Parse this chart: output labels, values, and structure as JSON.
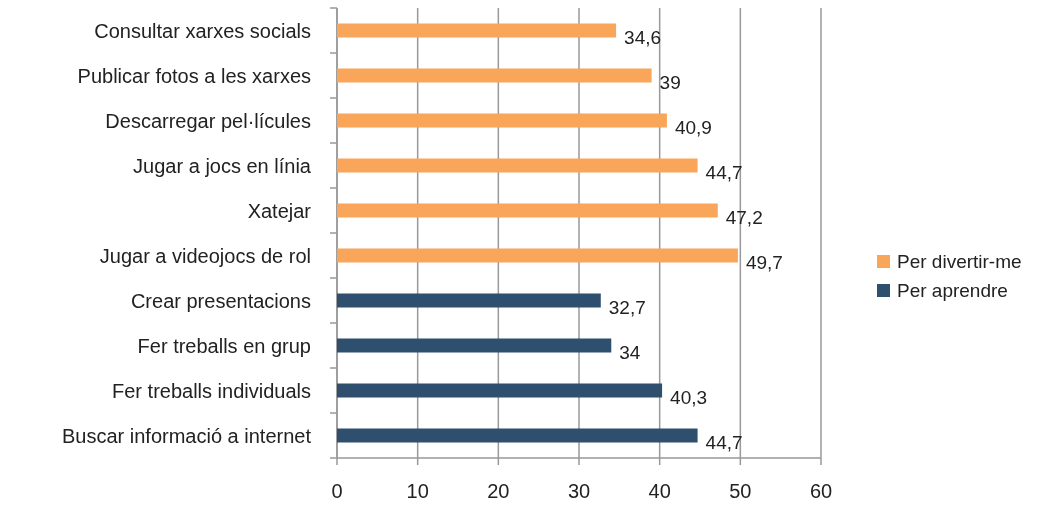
{
  "chart_data": {
    "type": "bar",
    "orientation": "horizontal",
    "categories": [
      "Consultar xarxes socials",
      "Publicar fotos a les xarxes",
      "Descarregar pel·lícules",
      "Jugar a jocs en línia",
      "Xatejar",
      "Jugar a videojocs de rol",
      "Crear presentacions",
      "Fer treballs en grup",
      "Fer treballs individuals",
      "Buscar informació a internet"
    ],
    "series": [
      {
        "name": "Per divertir-me",
        "color": "#f9a65a",
        "values": [
          34.6,
          39,
          40.9,
          44.7,
          47.2,
          49.7,
          null,
          null,
          null,
          null
        ],
        "value_labels": [
          "34,6",
          "39",
          "40,9",
          "44,7",
          "47,2",
          "49,7",
          null,
          null,
          null,
          null
        ]
      },
      {
        "name": "Per aprendre",
        "color": "#2f4f6f",
        "values": [
          null,
          null,
          null,
          null,
          null,
          null,
          32.7,
          34,
          40.3,
          44.7
        ],
        "value_labels": [
          null,
          null,
          null,
          null,
          null,
          null,
          "32,7",
          "34",
          "40,3",
          "44,7"
        ]
      }
    ],
    "xlim": [
      0,
      60
    ],
    "xticks": [
      0,
      10,
      20,
      30,
      40,
      50,
      60
    ],
    "grid": "x",
    "legend": "right"
  }
}
